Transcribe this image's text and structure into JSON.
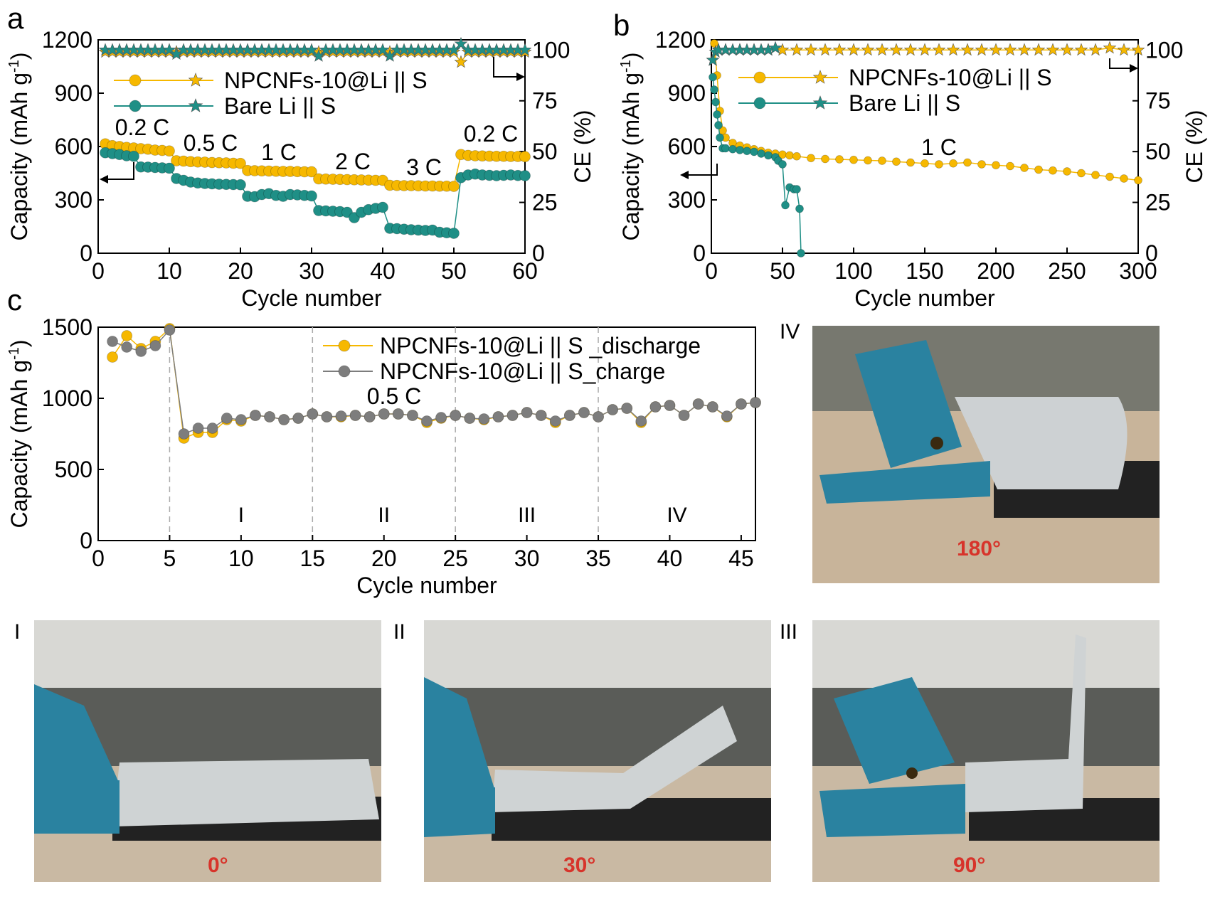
{
  "colors": {
    "yellow": "#f6b800",
    "yellow_edge": "#c48f00",
    "teal": "#1f8f86",
    "teal_light": "#5fb8ae",
    "gray": "#7d7d7d",
    "angle_text": "#d7342b"
  },
  "chart_data": [
    {
      "panel": "a",
      "type": "scatter",
      "xlabel": "Cycle number",
      "ylabel": "Capacity (mAh g",
      "ylabel_sup": "-1",
      "ylabel_tail": ")",
      "y2label": "CE (%)",
      "xlim": [
        0,
        60
      ],
      "ylim": [
        0,
        1200
      ],
      "y2lim": [
        0,
        105
      ],
      "xticks": [
        0,
        10,
        20,
        30,
        40,
        50,
        60
      ],
      "yticks": [
        0,
        300,
        600,
        900,
        1200
      ],
      "y2ticks": [
        0,
        25,
        50,
        75,
        100
      ],
      "legend_position": "top-left",
      "legend": [
        "NPCNFs-10@Li || S",
        "Bare Li || S"
      ],
      "annotations": [
        "0.2 C",
        "0.5 C",
        "1 C",
        "2 C",
        "3 C",
        "0.2 C"
      ],
      "series": [
        {
          "name": "NPCNFs-10@Li || S",
          "color": "yellow",
          "marker": "circle",
          "axis": "left",
          "x": [
            1,
            2,
            3,
            4,
            5,
            6,
            7,
            8,
            9,
            10,
            11,
            12,
            13,
            14,
            15,
            16,
            17,
            18,
            19,
            20,
            21,
            22,
            23,
            24,
            25,
            26,
            27,
            28,
            29,
            30,
            31,
            32,
            33,
            34,
            35,
            36,
            37,
            38,
            39,
            40,
            41,
            42,
            43,
            44,
            45,
            46,
            47,
            48,
            49,
            50,
            51,
            52,
            53,
            54,
            55,
            56,
            57,
            58,
            59,
            60
          ],
          "y": [
            615,
            605,
            600,
            595,
            592,
            588,
            585,
            580,
            578,
            575,
            520,
            518,
            515,
            513,
            512,
            510,
            509,
            508,
            506,
            505,
            465,
            464,
            463,
            462,
            461,
            460,
            460,
            459,
            458,
            458,
            418,
            417,
            416,
            415,
            414,
            413,
            412,
            411,
            410,
            410,
            382,
            381,
            380,
            380,
            379,
            378,
            378,
            377,
            377,
            376,
            555,
            550,
            548,
            547,
            546,
            545,
            545,
            544,
            544,
            543
          ]
        },
        {
          "name": "Bare Li || S",
          "color": "teal",
          "marker": "circle",
          "axis": "left",
          "x": [
            1,
            2,
            3,
            4,
            5,
            6,
            7,
            8,
            9,
            10,
            11,
            12,
            13,
            14,
            15,
            16,
            17,
            18,
            19,
            20,
            21,
            22,
            23,
            24,
            25,
            26,
            27,
            28,
            29,
            30,
            31,
            32,
            33,
            34,
            35,
            36,
            37,
            38,
            39,
            40,
            41,
            42,
            43,
            44,
            45,
            46,
            47,
            48,
            49,
            50,
            51,
            52,
            53,
            54,
            55,
            56,
            57,
            58,
            59,
            60
          ],
          "y": [
            565,
            560,
            555,
            548,
            545,
            485,
            484,
            482,
            480,
            478,
            420,
            410,
            400,
            395,
            392,
            390,
            388,
            387,
            386,
            385,
            320,
            318,
            330,
            335,
            325,
            320,
            330,
            328,
            325,
            322,
            240,
            238,
            236,
            234,
            230,
            200,
            230,
            245,
            252,
            258,
            140,
            138,
            135,
            132,
            130,
            128,
            130,
            118,
            115,
            112,
            425,
            440,
            445,
            440,
            438,
            436,
            438,
            440,
            437,
            436
          ]
        },
        {
          "name": "NPCNFs-10@Li || S CE",
          "color": "yellow",
          "marker": "star",
          "axis": "right",
          "x": [
            1,
            2,
            3,
            4,
            5,
            6,
            7,
            8,
            9,
            10,
            11,
            12,
            13,
            14,
            15,
            16,
            17,
            18,
            19,
            20,
            21,
            22,
            23,
            24,
            25,
            26,
            27,
            28,
            29,
            30,
            31,
            32,
            33,
            34,
            35,
            36,
            37,
            38,
            39,
            40,
            41,
            42,
            43,
            44,
            45,
            46,
            47,
            48,
            49,
            50,
            51,
            52,
            53,
            54,
            55,
            56,
            57,
            58,
            59,
            60
          ],
          "y": [
            99,
            99,
            99,
            99,
            99,
            99,
            99,
            99,
            99,
            99,
            99,
            99,
            99,
            99,
            99,
            99,
            99,
            99,
            99,
            99,
            99,
            99,
            99,
            99,
            99,
            99,
            99,
            99,
            99,
            99,
            99,
            99,
            99,
            99,
            99,
            99,
            99,
            99,
            99,
            99,
            99,
            99,
            99,
            99,
            99,
            99,
            99,
            99,
            99,
            99,
            94,
            99,
            99,
            99,
            99,
            99,
            99,
            99,
            99,
            99
          ]
        },
        {
          "name": "Bare Li || S CE",
          "color": "teal",
          "marker": "star",
          "axis": "right",
          "x": [
            1,
            2,
            3,
            4,
            5,
            6,
            7,
            8,
            9,
            10,
            11,
            12,
            13,
            14,
            15,
            16,
            17,
            18,
            19,
            20,
            21,
            22,
            23,
            24,
            25,
            26,
            27,
            28,
            29,
            30,
            31,
            32,
            33,
            34,
            35,
            36,
            37,
            38,
            39,
            40,
            41,
            42,
            43,
            44,
            45,
            46,
            47,
            48,
            49,
            50,
            51,
            52,
            53,
            54,
            55,
            56,
            57,
            58,
            59,
            60
          ],
          "y": [
            100,
            100,
            100,
            100,
            100,
            100,
            100,
            100,
            100,
            100,
            98,
            100,
            100,
            100,
            100,
            100,
            100,
            100,
            100,
            100,
            100,
            100,
            100,
            100,
            100,
            100,
            100,
            100,
            100,
            100,
            97,
            100,
            100,
            100,
            100,
            100,
            100,
            100,
            100,
            100,
            97,
            100,
            100,
            100,
            100,
            100,
            100,
            100,
            100,
            100,
            103,
            100,
            100,
            100,
            100,
            100,
            100,
            100,
            100,
            100
          ]
        }
      ]
    },
    {
      "panel": "b",
      "type": "scatter",
      "xlabel": "Cycle number",
      "ylabel": "Capacity (mAh g",
      "ylabel_sup": "-1",
      "ylabel_tail": ")",
      "y2label": "CE (%)",
      "xlim": [
        0,
        300
      ],
      "ylim": [
        0,
        1200
      ],
      "y2lim": [
        0,
        105
      ],
      "xticks": [
        0,
        50,
        100,
        150,
        200,
        250,
        300
      ],
      "yticks": [
        0,
        300,
        600,
        900,
        1200
      ],
      "y2ticks": [
        0,
        25,
        50,
        75,
        100
      ],
      "legend_position": "top-center",
      "legend": [
        "NPCNFs-10@Li || S",
        "Bare Li || S"
      ],
      "annotations": [
        "1 C"
      ],
      "series": [
        {
          "name": "NPCNFs-10@Li || S",
          "color": "yellow",
          "marker": "circle",
          "axis": "left",
          "x": [
            2,
            4,
            6,
            8,
            10,
            15,
            20,
            25,
            30,
            35,
            40,
            45,
            50,
            55,
            60,
            70,
            80,
            90,
            100,
            110,
            120,
            130,
            140,
            150,
            160,
            170,
            180,
            190,
            200,
            210,
            220,
            230,
            240,
            250,
            260,
            270,
            280,
            290,
            300
          ],
          "y": [
            1180,
            1000,
            800,
            690,
            650,
            620,
            605,
            595,
            585,
            575,
            565,
            560,
            555,
            550,
            545,
            535,
            530,
            528,
            525,
            522,
            520,
            515,
            510,
            505,
            500,
            505,
            510,
            500,
            495,
            490,
            480,
            470,
            465,
            460,
            450,
            440,
            430,
            420,
            410
          ]
        },
        {
          "name": "Bare Li || S",
          "color": "teal",
          "marker": "circle",
          "axis": "left",
          "x": [
            1,
            2,
            3,
            4,
            5,
            6,
            8,
            10,
            15,
            20,
            25,
            30,
            35,
            40,
            45,
            47,
            50,
            52,
            55,
            58,
            60,
            62,
            63
          ],
          "y": [
            990,
            920,
            850,
            780,
            720,
            650,
            590,
            590,
            585,
            580,
            575,
            570,
            560,
            550,
            540,
            520,
            500,
            270,
            370,
            360,
            360,
            250,
            0
          ]
        },
        {
          "name": "NPCNFs-10@Li || S CE",
          "color": "yellow",
          "marker": "star",
          "axis": "right",
          "x": [
            1,
            5,
            10,
            20,
            30,
            40,
            50,
            60,
            70,
            80,
            90,
            100,
            110,
            120,
            130,
            140,
            150,
            160,
            170,
            180,
            190,
            200,
            210,
            220,
            230,
            240,
            250,
            260,
            270,
            280,
            290,
            300
          ],
          "y": [
            95,
            100,
            100,
            100,
            100,
            100,
            100,
            100,
            100,
            100,
            100,
            100,
            100,
            100,
            100,
            100,
            100,
            100,
            100,
            100,
            100,
            100,
            100,
            100,
            100,
            100,
            100,
            100,
            100,
            101,
            100,
            100
          ]
        },
        {
          "name": "Bare Li || S CE",
          "color": "teal",
          "marker": "star",
          "axis": "right",
          "x": [
            1,
            3,
            5,
            10,
            15,
            20,
            25,
            30,
            35,
            40,
            45
          ],
          "y": [
            95,
            99,
            100,
            100,
            100,
            100,
            100,
            100,
            100,
            100,
            101
          ]
        }
      ]
    },
    {
      "panel": "c",
      "type": "line",
      "xlabel": "Cycle number",
      "ylabel": "Capacity (mAh g",
      "ylabel_sup": "-1",
      "ylabel_tail": ")",
      "xlim": [
        0,
        46
      ],
      "ylim": [
        0,
        1500
      ],
      "xticks": [
        0,
        5,
        10,
        15,
        20,
        25,
        30,
        35,
        40,
        45
      ],
      "yticks": [
        0,
        500,
        1000,
        1500
      ],
      "legend_position": "top-right",
      "legend": [
        "NPCNFs-10@Li || S _discharge",
        "NPCNFs-10@Li || S_charge"
      ],
      "annotations": [
        "0.5 C"
      ],
      "dividers": [
        5,
        15,
        25,
        35
      ],
      "regions": [
        "I",
        "II",
        "III",
        "IV"
      ],
      "series": [
        {
          "name": "NPCNFs-10@Li || S _discharge",
          "color": "yellow",
          "marker": "circle",
          "x": [
            1,
            2,
            3,
            4,
            5,
            6,
            7,
            8,
            9,
            10,
            11,
            12,
            13,
            14,
            15,
            16,
            17,
            18,
            19,
            20,
            21,
            22,
            23,
            24,
            25,
            26,
            27,
            28,
            29,
            30,
            31,
            32,
            33,
            34,
            35,
            36,
            37,
            38,
            39,
            40,
            41,
            42,
            43,
            44,
            45,
            46
          ],
          "y": [
            1290,
            1440,
            1350,
            1400,
            1490,
            720,
            760,
            760,
            850,
            840,
            880,
            870,
            850,
            860,
            890,
            870,
            870,
            880,
            870,
            890,
            890,
            880,
            830,
            860,
            880,
            860,
            850,
            870,
            880,
            900,
            880,
            830,
            880,
            900,
            870,
            920,
            930,
            830,
            940,
            950,
            880,
            960,
            940,
            870,
            960,
            970
          ]
        },
        {
          "name": "NPCNFs-10@Li || S_charge",
          "color": "gray",
          "marker": "circle",
          "x": [
            1,
            2,
            3,
            4,
            5,
            6,
            7,
            8,
            9,
            10,
            11,
            12,
            13,
            14,
            15,
            16,
            17,
            18,
            19,
            20,
            21,
            22,
            23,
            24,
            25,
            26,
            27,
            28,
            29,
            30,
            31,
            32,
            33,
            34,
            35,
            36,
            37,
            38,
            39,
            40,
            41,
            42,
            43,
            44,
            45,
            46
          ],
          "y": [
            1400,
            1360,
            1330,
            1370,
            1480,
            750,
            790,
            790,
            860,
            850,
            880,
            870,
            850,
            860,
            890,
            870,
            875,
            880,
            870,
            890,
            890,
            880,
            840,
            865,
            880,
            860,
            855,
            870,
            880,
            900,
            880,
            840,
            880,
            900,
            870,
            920,
            930,
            840,
            940,
            950,
            880,
            960,
            940,
            875,
            960,
            970
          ]
        }
      ]
    }
  ],
  "photos": [
    {
      "tag": "IV",
      "angle": "180°"
    },
    {
      "tag": "I",
      "angle": "0°"
    },
    {
      "tag": "II",
      "angle": "30°"
    },
    {
      "tag": "III",
      "angle": "90°"
    }
  ]
}
